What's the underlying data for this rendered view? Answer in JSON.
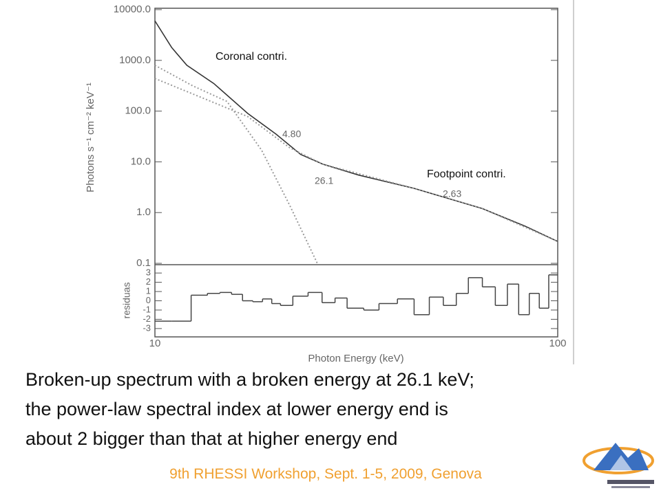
{
  "chart_data": [
    {
      "type": "line",
      "log_x": true,
      "log_y": true,
      "ylabel": "Photons s⁻¹ cm⁻² keV⁻¹",
      "xlim": [
        10,
        100
      ],
      "ylim": [
        0.1,
        10000
      ],
      "yticks": [
        {
          "value": 10000,
          "label": "10000.0"
        },
        {
          "value": 1000,
          "label": "1000.0"
        },
        {
          "value": 100,
          "label": "100.0"
        },
        {
          "value": 10,
          "label": "10.0"
        },
        {
          "value": 1,
          "label": "1.0"
        },
        {
          "value": 0.1,
          "label": "0.1"
        }
      ],
      "series": [
        {
          "name": "total",
          "color": "#333333",
          "style": "solid",
          "x": [
            10,
            11,
            12,
            14,
            17,
            20,
            23,
            26.1,
            32,
            44,
            65,
            83,
            100
          ],
          "values": [
            6000,
            1800,
            800,
            350,
            90,
            35,
            14,
            9,
            5.5,
            3,
            1.2,
            0.54,
            0.27
          ]
        },
        {
          "name": "coronal",
          "color": "#9a9a9a",
          "style": "dotted",
          "x": [
            10,
            12.4,
            15.1,
            18.4,
            21.6,
            25.3
          ],
          "values": [
            800,
            316,
            155,
            17,
            1.4,
            0.1
          ]
        },
        {
          "name": "footpoint",
          "color": "#9a9a9a",
          "style": "dotted",
          "x": [
            10,
            13.4,
            17,
            21.6,
            26.1,
            44,
            65,
            100
          ],
          "values": [
            440,
            170,
            78,
            19,
            9,
            3,
            1.2,
            0.27
          ]
        }
      ],
      "annotations": [
        "Coronal contri.",
        "Footpoint contri.",
        "4.80",
        "26.1",
        "2.63"
      ]
    },
    {
      "type": "step",
      "log_x": true,
      "xlabel": "Photon Energy (keV)",
      "ylabel": "residuas",
      "xlim": [
        10,
        100
      ],
      "xticks": [
        10,
        100
      ],
      "ylim": [
        -3.9,
        3.9
      ],
      "yticks": [
        3,
        2,
        1,
        0,
        -1,
        -2,
        -3
      ],
      "x": [
        10,
        11,
        12.3,
        13.5,
        14.5,
        15.5,
        16.5,
        17.5,
        18.5,
        19.5,
        20.5,
        22,
        24,
        26,
        28,
        30,
        33,
        36,
        40,
        44,
        48,
        52,
        56,
        60,
        65,
        70,
        75,
        80,
        85,
        90,
        95
      ],
      "values": [
        -2.2,
        -2.2,
        0.6,
        0.8,
        0.9,
        0.7,
        0,
        -0.1,
        0.2,
        -0.3,
        -0.5,
        0.5,
        0.9,
        -0.2,
        0.3,
        -0.8,
        -1,
        -0.3,
        0.2,
        -1.5,
        0.4,
        -0.5,
        0.8,
        2.5,
        1.5,
        -0.5,
        1.8,
        -1.5,
        0.8,
        -0.8,
        2.8
      ],
      "color": "#444444"
    }
  ],
  "slide": {
    "caption": [
      "Broken-up spectrum with a broken energy at 26.1 keV;",
      "the power-law spectral index at lower energy end is",
      "about 2 bigger than that at higher energy end"
    ],
    "footer": "9th RHESSI Workshop, Sept. 1-5, 2009, Genova"
  }
}
